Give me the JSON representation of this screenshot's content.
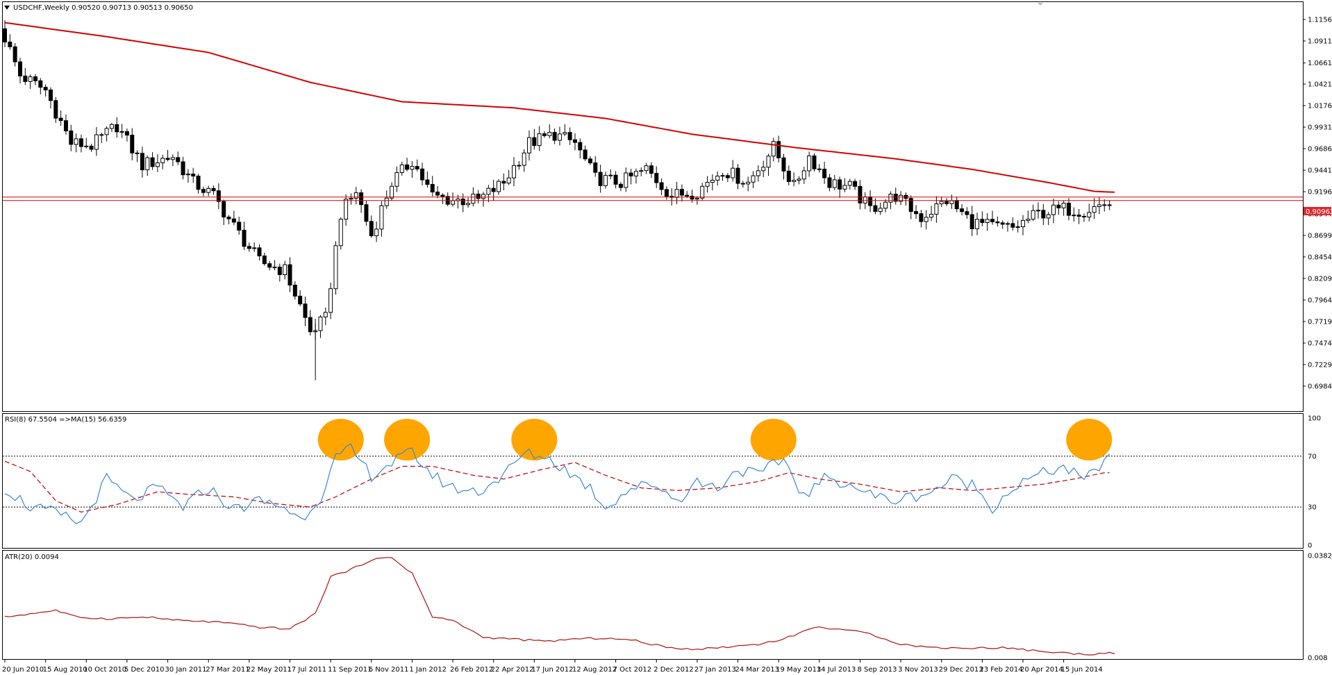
{
  "symbol_header": {
    "text": "USDCHF,Weekly  0.90520 0.90713 0.90513 0.90650"
  },
  "current_price_label": "0.90962",
  "colors": {
    "ma_line": "#d40000",
    "rsi_line": "#3b86d6",
    "rsi_ma_line": "#c00000",
    "atr_line": "#b01010",
    "circle_fill": "#ffa500",
    "price_label_bg": "#e0262b",
    "hline": "#d40000"
  },
  "chart_data": [
    {
      "id": "price",
      "type": "candlestick",
      "ylim": [
        0.6984,
        1.1156
      ],
      "price_ticks": [
        "1.11560",
        "1.09110",
        "1.06610",
        "1.04210",
        "1.01760",
        "0.99310",
        "0.96860",
        "0.94410",
        "0.91960",
        "0.89440",
        "0.86990",
        "0.84540",
        "0.82090",
        "0.79640",
        "0.77190",
        "0.74740",
        "0.72290",
        "0.69840"
      ],
      "x_tick_labels": [
        "20 Jun 2010",
        "15 Aug 2010",
        "10 Oct 2010",
        "5 Dec 2010",
        "30 Jan 2011",
        "27 Mar 2011",
        "22 May 2011",
        "17 Jul 2011",
        "11 Sep 2011",
        "6 Nov 2011",
        "1 Jan 2012",
        "26 Feb 2012",
        "22 Apr 2012",
        "17 Jun 2012",
        "12 Aug 2012",
        "7 Oct 2012",
        "2 Dec 2012",
        "27 Jan 2013",
        "24 Mar 2013",
        "19 May 2013",
        "14 Jul 2013",
        "8 Sep 2013",
        "3 Nov 2013",
        "29 Dec 2013",
        "23 Feb 2014",
        "20 Apr 2014",
        "15 Jun 2014"
      ],
      "horizontal_lines": [
        0.9135,
        0.9096
      ],
      "moving_average_anchors": [
        {
          "week": 0,
          "value": 1.112
        },
        {
          "week": 20,
          "value": 1.096
        },
        {
          "week": 40,
          "value": 1.078
        },
        {
          "week": 60,
          "value": 1.044
        },
        {
          "week": 78,
          "value": 1.022
        },
        {
          "week": 100,
          "value": 1.015
        },
        {
          "week": 118,
          "value": 1.003
        },
        {
          "week": 135,
          "value": 0.985
        },
        {
          "week": 155,
          "value": 0.97
        },
        {
          "week": 175,
          "value": 0.957
        },
        {
          "week": 190,
          "value": 0.945
        },
        {
          "week": 205,
          "value": 0.93
        },
        {
          "week": 214,
          "value": 0.92
        },
        {
          "week": 218,
          "value": 0.919
        }
      ],
      "close_anchors": [
        {
          "week": 0,
          "value": 1.095
        },
        {
          "week": 3,
          "value": 1.052
        },
        {
          "week": 8,
          "value": 1.035
        },
        {
          "week": 13,
          "value": 0.975
        },
        {
          "week": 17,
          "value": 0.972
        },
        {
          "week": 22,
          "value": 0.995
        },
        {
          "week": 27,
          "value": 0.95
        },
        {
          "week": 33,
          "value": 0.96
        },
        {
          "week": 37,
          "value": 0.93
        },
        {
          "week": 41,
          "value": 0.915
        },
        {
          "week": 45,
          "value": 0.88
        },
        {
          "week": 50,
          "value": 0.84
        },
        {
          "week": 55,
          "value": 0.83
        },
        {
          "week": 58,
          "value": 0.79
        },
        {
          "week": 60,
          "value": 0.76
        },
        {
          "week": 63,
          "value": 0.775
        },
        {
          "week": 66,
          "value": 0.895
        },
        {
          "week": 69,
          "value": 0.92
        },
        {
          "week": 72,
          "value": 0.87
        },
        {
          "week": 76,
          "value": 0.93
        },
        {
          "week": 80,
          "value": 0.955
        },
        {
          "week": 84,
          "value": 0.915
        },
        {
          "week": 88,
          "value": 0.91
        },
        {
          "week": 93,
          "value": 0.91
        },
        {
          "week": 98,
          "value": 0.93
        },
        {
          "week": 103,
          "value": 0.975
        },
        {
          "week": 108,
          "value": 0.985
        },
        {
          "week": 112,
          "value": 0.975
        },
        {
          "week": 116,
          "value": 0.935
        },
        {
          "week": 121,
          "value": 0.93
        },
        {
          "week": 126,
          "value": 0.945
        },
        {
          "week": 131,
          "value": 0.915
        },
        {
          "week": 136,
          "value": 0.92
        },
        {
          "week": 141,
          "value": 0.945
        },
        {
          "week": 146,
          "value": 0.93
        },
        {
          "week": 151,
          "value": 0.97
        },
        {
          "week": 155,
          "value": 0.925
        },
        {
          "week": 158,
          "value": 0.96
        },
        {
          "week": 162,
          "value": 0.93
        },
        {
          "week": 166,
          "value": 0.925
        },
        {
          "week": 170,
          "value": 0.9
        },
        {
          "week": 175,
          "value": 0.915
        },
        {
          "week": 180,
          "value": 0.89
        },
        {
          "week": 185,
          "value": 0.91
        },
        {
          "week": 190,
          "value": 0.885
        },
        {
          "week": 194,
          "value": 0.88
        },
        {
          "week": 198,
          "value": 0.878
        },
        {
          "week": 203,
          "value": 0.895
        },
        {
          "week": 208,
          "value": 0.9
        },
        {
          "week": 212,
          "value": 0.898
        },
        {
          "week": 216,
          "value": 0.906
        }
      ]
    },
    {
      "id": "rsi",
      "type": "line",
      "title": "RSI(8) 67.5504  =>MA(15) 56.6359",
      "ylim": [
        0,
        100
      ],
      "y_ticks": [
        "100",
        "70",
        "30",
        "0"
      ],
      "levels": [
        70,
        30
      ],
      "rsi_anchors": [
        {
          "week": 0,
          "value": 45
        },
        {
          "week": 5,
          "value": 30
        },
        {
          "week": 10,
          "value": 25
        },
        {
          "week": 15,
          "value": 17
        },
        {
          "week": 20,
          "value": 52
        },
        {
          "week": 25,
          "value": 35
        },
        {
          "week": 30,
          "value": 45
        },
        {
          "week": 35,
          "value": 30
        },
        {
          "week": 40,
          "value": 45
        },
        {
          "week": 45,
          "value": 28
        },
        {
          "week": 50,
          "value": 35
        },
        {
          "week": 55,
          "value": 30
        },
        {
          "week": 58,
          "value": 20
        },
        {
          "week": 62,
          "value": 38
        },
        {
          "week": 65,
          "value": 68
        },
        {
          "week": 68,
          "value": 75
        },
        {
          "week": 72,
          "value": 55
        },
        {
          "week": 76,
          "value": 65
        },
        {
          "week": 80,
          "value": 73
        },
        {
          "week": 84,
          "value": 55
        },
        {
          "week": 88,
          "value": 45
        },
        {
          "week": 93,
          "value": 42
        },
        {
          "week": 98,
          "value": 55
        },
        {
          "week": 102,
          "value": 72
        },
        {
          "week": 106,
          "value": 70
        },
        {
          "week": 110,
          "value": 60
        },
        {
          "week": 115,
          "value": 45
        },
        {
          "week": 118,
          "value": 30
        },
        {
          "week": 123,
          "value": 45
        },
        {
          "week": 128,
          "value": 48
        },
        {
          "week": 132,
          "value": 35
        },
        {
          "week": 136,
          "value": 50
        },
        {
          "week": 140,
          "value": 45
        },
        {
          "week": 144,
          "value": 60
        },
        {
          "week": 148,
          "value": 55
        },
        {
          "week": 153,
          "value": 68
        },
        {
          "week": 157,
          "value": 38
        },
        {
          "week": 161,
          "value": 52
        },
        {
          "week": 165,
          "value": 50
        },
        {
          "week": 170,
          "value": 40
        },
        {
          "week": 174,
          "value": 35
        },
        {
          "week": 178,
          "value": 38
        },
        {
          "week": 182,
          "value": 42
        },
        {
          "week": 186,
          "value": 52
        },
        {
          "week": 190,
          "value": 48
        },
        {
          "week": 194,
          "value": 30
        },
        {
          "week": 198,
          "value": 45
        },
        {
          "week": 203,
          "value": 55
        },
        {
          "week": 208,
          "value": 62
        },
        {
          "week": 212,
          "value": 50
        },
        {
          "week": 216,
          "value": 67
        }
      ],
      "ma_anchors": [
        {
          "week": 0,
          "value": 66
        },
        {
          "week": 5,
          "value": 58
        },
        {
          "week": 10,
          "value": 35
        },
        {
          "week": 15,
          "value": 26
        },
        {
          "week": 22,
          "value": 32
        },
        {
          "week": 30,
          "value": 42
        },
        {
          "week": 36,
          "value": 40
        },
        {
          "week": 45,
          "value": 38
        },
        {
          "week": 52,
          "value": 33
        },
        {
          "week": 60,
          "value": 30
        },
        {
          "week": 65,
          "value": 38
        },
        {
          "week": 72,
          "value": 52
        },
        {
          "week": 78,
          "value": 62
        },
        {
          "week": 84,
          "value": 62
        },
        {
          "week": 92,
          "value": 55
        },
        {
          "week": 98,
          "value": 52
        },
        {
          "week": 106,
          "value": 60
        },
        {
          "week": 112,
          "value": 65
        },
        {
          "week": 118,
          "value": 55
        },
        {
          "week": 125,
          "value": 45
        },
        {
          "week": 132,
          "value": 43
        },
        {
          "week": 140,
          "value": 45
        },
        {
          "week": 148,
          "value": 50
        },
        {
          "week": 154,
          "value": 57
        },
        {
          "week": 160,
          "value": 52
        },
        {
          "week": 168,
          "value": 48
        },
        {
          "week": 176,
          "value": 42
        },
        {
          "week": 184,
          "value": 45
        },
        {
          "week": 190,
          "value": 43
        },
        {
          "week": 196,
          "value": 45
        },
        {
          "week": 204,
          "value": 48
        },
        {
          "week": 210,
          "value": 52
        },
        {
          "week": 216,
          "value": 57
        }
      ],
      "highlight_weeks": [
        66,
        79,
        104,
        151,
        213
      ]
    },
    {
      "id": "atr",
      "type": "line",
      "title": "ATR(20) 0.0094",
      "y_ticks": [
        "0.0382",
        "0.008"
      ],
      "ylim": [
        0.008,
        0.0382
      ],
      "atr_anchors": [
        {
          "week": 0,
          "value": 0.02
        },
        {
          "week": 5,
          "value": 0.021
        },
        {
          "week": 10,
          "value": 0.022
        },
        {
          "week": 14,
          "value": 0.02
        },
        {
          "week": 20,
          "value": 0.0195
        },
        {
          "week": 28,
          "value": 0.02
        },
        {
          "week": 34,
          "value": 0.019
        },
        {
          "week": 42,
          "value": 0.0185
        },
        {
          "week": 50,
          "value": 0.017
        },
        {
          "week": 56,
          "value": 0.0165
        },
        {
          "week": 61,
          "value": 0.021
        },
        {
          "week": 64,
          "value": 0.032
        },
        {
          "week": 68,
          "value": 0.034
        },
        {
          "week": 72,
          "value": 0.037
        },
        {
          "week": 76,
          "value": 0.0376
        },
        {
          "week": 80,
          "value": 0.033
        },
        {
          "week": 84,
          "value": 0.02
        },
        {
          "week": 88,
          "value": 0.019
        },
        {
          "week": 94,
          "value": 0.014
        },
        {
          "week": 100,
          "value": 0.0135
        },
        {
          "week": 106,
          "value": 0.0128
        },
        {
          "week": 112,
          "value": 0.0135
        },
        {
          "week": 118,
          "value": 0.0138
        },
        {
          "week": 124,
          "value": 0.013
        },
        {
          "week": 130,
          "value": 0.011
        },
        {
          "week": 136,
          "value": 0.0105
        },
        {
          "week": 142,
          "value": 0.0112
        },
        {
          "week": 148,
          "value": 0.012
        },
        {
          "week": 153,
          "value": 0.0135
        },
        {
          "week": 159,
          "value": 0.017
        },
        {
          "week": 164,
          "value": 0.0165
        },
        {
          "week": 170,
          "value": 0.015
        },
        {
          "week": 176,
          "value": 0.012
        },
        {
          "week": 182,
          "value": 0.011
        },
        {
          "week": 190,
          "value": 0.0108
        },
        {
          "week": 196,
          "value": 0.011
        },
        {
          "week": 204,
          "value": 0.0098
        },
        {
          "week": 212,
          "value": 0.009
        },
        {
          "week": 218,
          "value": 0.0094
        }
      ]
    }
  ]
}
